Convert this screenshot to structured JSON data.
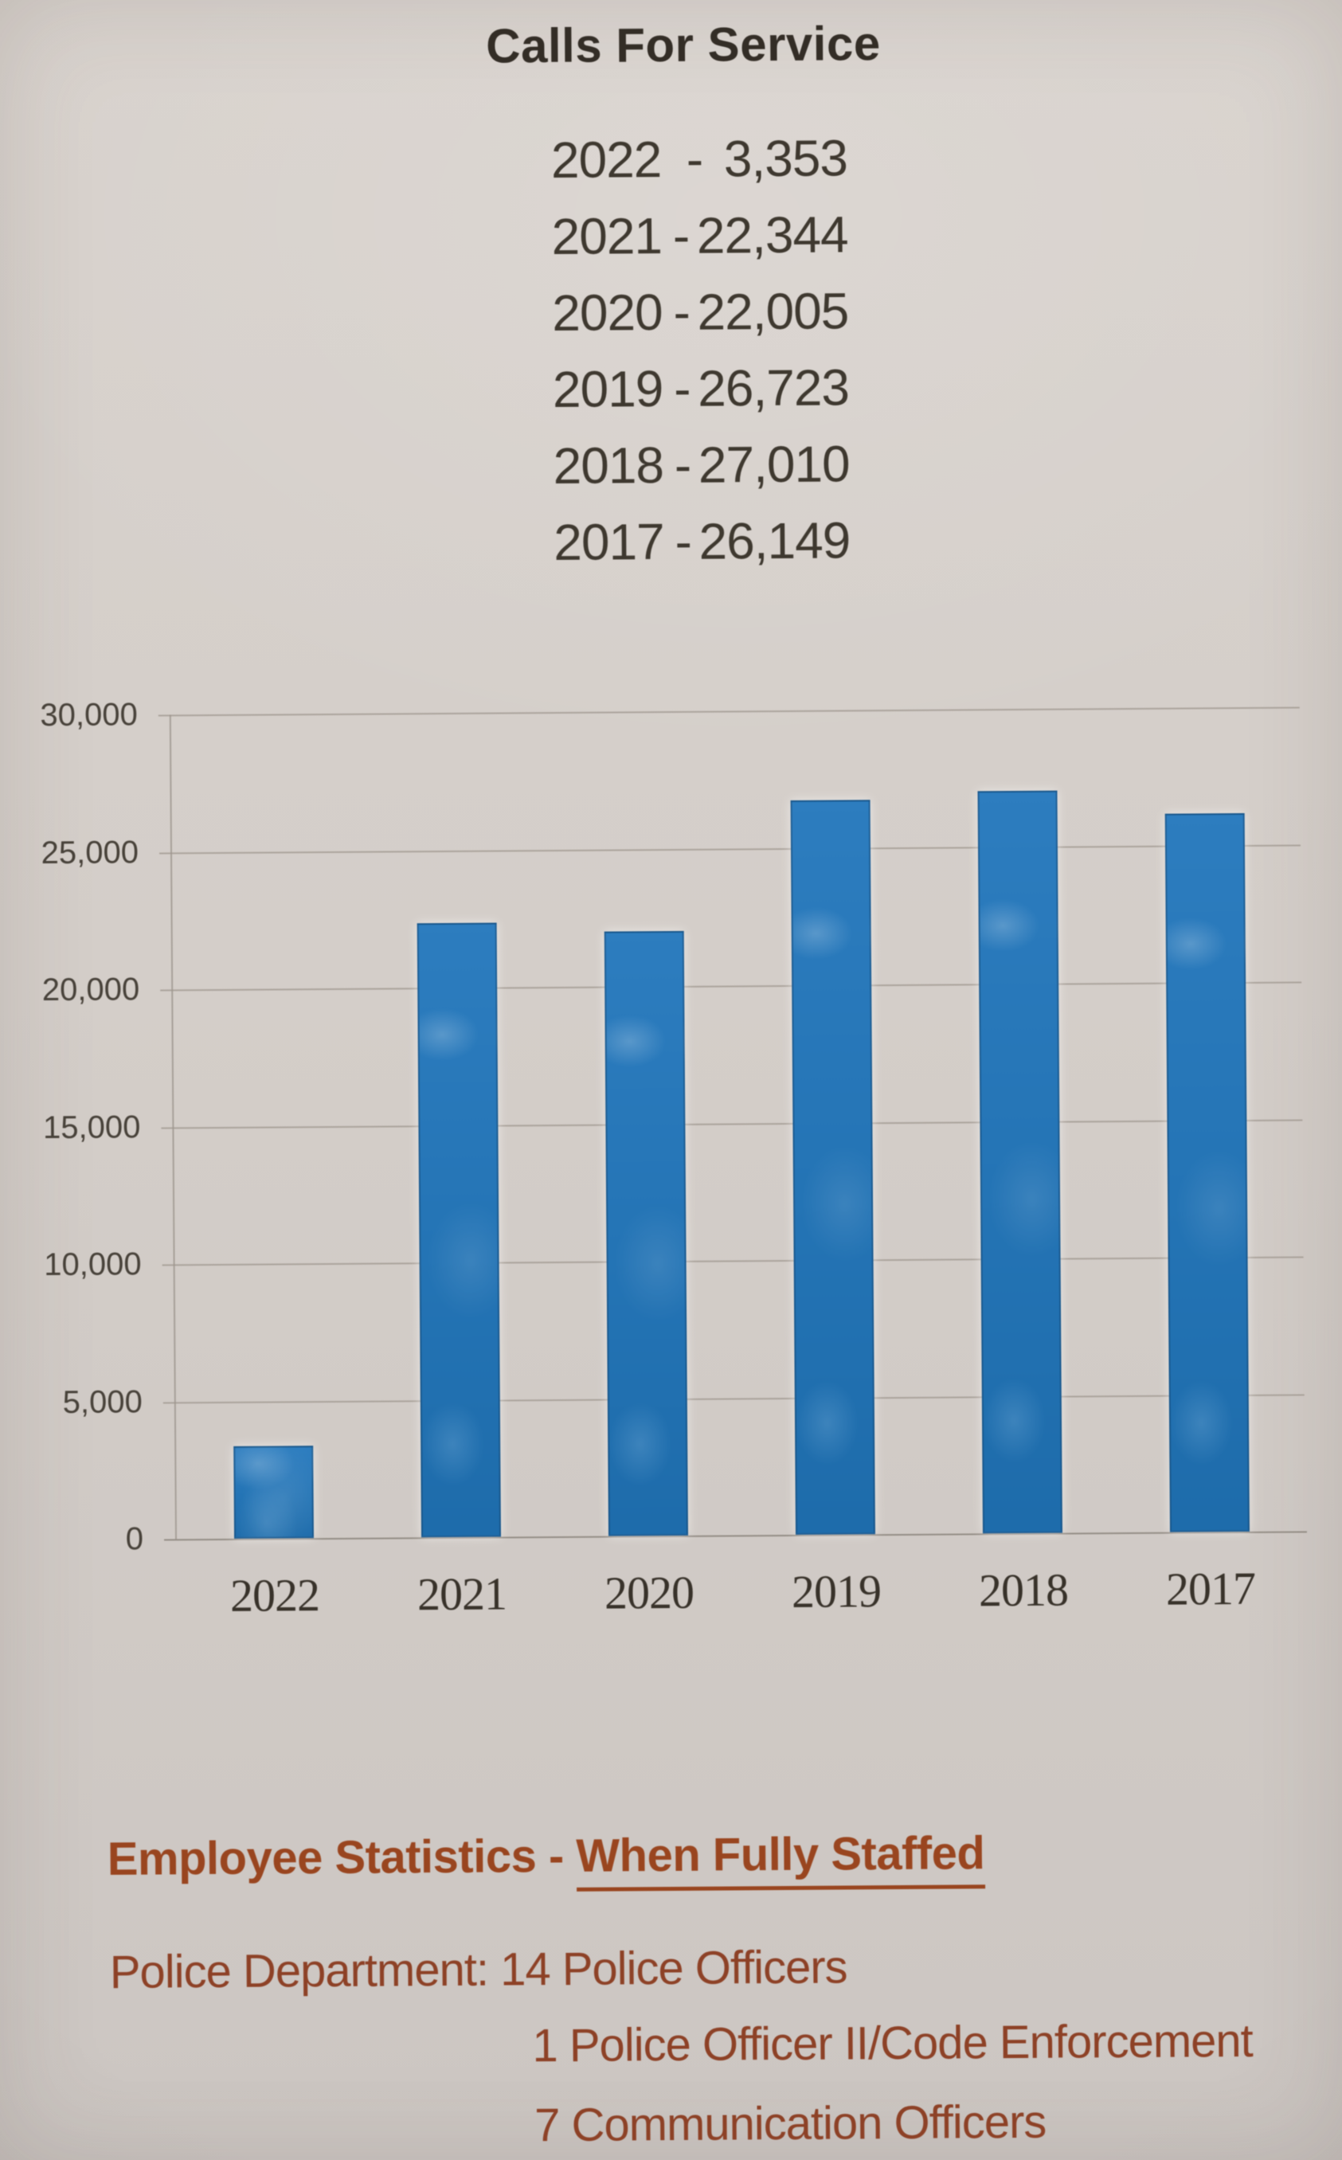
{
  "page": {
    "title": "Calls For Service",
    "background_color": "#d4cec9"
  },
  "calls_list": {
    "items": [
      {
        "year": "2022",
        "dash": "-",
        "value": "3,353"
      },
      {
        "year": "2021",
        "dash": "-",
        "value": "22,344"
      },
      {
        "year": "2020",
        "dash": "-",
        "value": "22,005"
      },
      {
        "year": "2019",
        "dash": "-",
        "value": "26,723"
      },
      {
        "year": "2018",
        "dash": "-",
        "value": "27,010"
      },
      {
        "year": "2017",
        "dash": "-",
        "value": "26,149"
      }
    ]
  },
  "chart_data": {
    "type": "bar",
    "title": "Calls For Service",
    "categories": [
      "2022",
      "2021",
      "2020",
      "2019",
      "2018",
      "2017"
    ],
    "values": [
      3353,
      22344,
      22005,
      26723,
      27010,
      26149
    ],
    "xlabel": "",
    "ylabel": "",
    "ylim": [
      0,
      30000
    ],
    "y_ticks": [
      {
        "value": 30000,
        "label": "30,000"
      },
      {
        "value": 25000,
        "label": "25,000"
      },
      {
        "value": 20000,
        "label": "20,000"
      },
      {
        "value": 15000,
        "label": "15,000"
      },
      {
        "value": 10000,
        "label": "10,000"
      },
      {
        "value": 5000,
        "label": "5,000"
      },
      {
        "value": 0,
        "label": "0"
      }
    ],
    "grid": "horizontal",
    "legend": "none",
    "bar_color": "#2474b5"
  },
  "employee_stats": {
    "heading_prefix": "Employee Statistics - ",
    "heading_underlined": "When Fully Staffed",
    "accent_color": "#99451f",
    "lines": [
      {
        "text": "Police Department: 14 Police Officers"
      },
      {
        "text": "1 Police Officer II/Code Enforcement"
      },
      {
        "text": "7 Communication Officers"
      }
    ]
  }
}
